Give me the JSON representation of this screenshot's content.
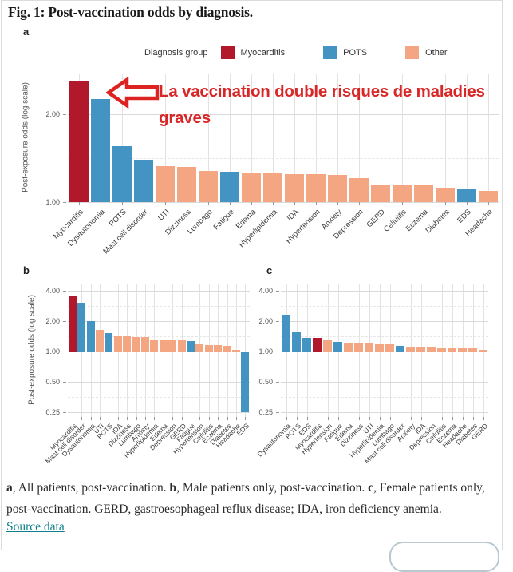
{
  "figure": {
    "title": "Fig. 1: Post-vaccination odds by diagnosis.",
    "source_link_label": "Source data",
    "caption_segments": [
      {
        "text": "a",
        "bold": true
      },
      {
        "text": ", All patients, post-vaccination. ",
        "bold": false
      },
      {
        "text": "b",
        "bold": true
      },
      {
        "text": ", Male patients only, post-vaccination. ",
        "bold": false
      },
      {
        "text": "c",
        "bold": true
      },
      {
        "text": ", Female patients only, post-vaccination. GERD, gastroesophageal reflux disease; IDA, iron deficiency anemia.",
        "bold": false
      }
    ]
  },
  "colors": {
    "myocarditis": "#b2182b",
    "pots": "#4393c3",
    "other": "#f4a582",
    "annotation_red": "#d92626",
    "link_teal": "#0f7f8b"
  },
  "legend": {
    "label": "Diagnosis group",
    "items": [
      {
        "label": "Myocarditis",
        "group": "Myocarditis",
        "color": "#b2182b"
      },
      {
        "label": "POTS",
        "group": "POTS",
        "color": "#4393c3"
      },
      {
        "label": "Other",
        "group": "Other",
        "color": "#f4a582"
      }
    ]
  },
  "annotation": {
    "line1": "La vaccination double risques de maladies",
    "line2": "graves",
    "arrow": "left-block-arrow",
    "color": "#d92626"
  },
  "group_colors": {
    "Myocarditis": "#b2182b",
    "POTS": "#4393c3",
    "Other": "#f4a582"
  },
  "chart_data": [
    {
      "id": "a",
      "panel_label": "a",
      "type": "bar",
      "scale": "log",
      "ylabel": "Post-exposure odds (log scale)",
      "yticks": [
        {
          "v": 2,
          "label": "2.00"
        },
        {
          "v": 1,
          "label": "1.00"
        }
      ],
      "minor_ticks": [
        1.414
      ],
      "ylim": [
        1.0,
        2.7
      ],
      "grid": true,
      "categories": [
        "Myocarditis",
        "Dysautonomia",
        "POTS",
        "Mast cell disorder",
        "UTI",
        "Dizziness",
        "Lumbago",
        "Fatigue",
        "Edema",
        "Hyperlipidemia",
        "IDA",
        "Hypertension",
        "Anxiety",
        "Depression",
        "GERD",
        "Cellulitis",
        "Eczema",
        "Diabetes",
        "EDS",
        "Headache"
      ],
      "values": [
        2.6,
        2.25,
        1.55,
        1.4,
        1.33,
        1.32,
        1.28,
        1.27,
        1.26,
        1.26,
        1.25,
        1.25,
        1.24,
        1.21,
        1.15,
        1.14,
        1.14,
        1.12,
        1.11,
        1.09
      ],
      "groups": [
        "Myocarditis",
        "POTS",
        "POTS",
        "POTS",
        "Other",
        "Other",
        "Other",
        "POTS",
        "Other",
        "Other",
        "Other",
        "Other",
        "Other",
        "Other",
        "Other",
        "Other",
        "Other",
        "Other",
        "POTS",
        "Other"
      ]
    },
    {
      "id": "b",
      "panel_label": "b",
      "type": "bar",
      "scale": "log",
      "ylabel": "Post-exposure odds (log scale)",
      "yticks": [
        {
          "v": 4,
          "label": "4.00"
        },
        {
          "v": 2,
          "label": "2.00"
        },
        {
          "v": 1,
          "label": "1.00"
        },
        {
          "v": 0.5,
          "label": "0.50"
        },
        {
          "v": 0.25,
          "label": "0.25"
        }
      ],
      "minor_ticks": [
        2.828,
        1.414,
        0.707,
        0.354
      ],
      "ylim": [
        0.22,
        4.6
      ],
      "grid": true,
      "categories": [
        "Myocarditis",
        "Mast cell disorder",
        "Dysautonomia",
        "UTI",
        "POTS",
        "IDA",
        "Dizziness",
        "Lumbago",
        "Anxiety",
        "Hyperlipidemia",
        "Edema",
        "Depression",
        "GERD",
        "Fatigue",
        "Hypertension",
        "Cellulitis",
        "Eczema",
        "Diabetes",
        "Headache",
        "EDS"
      ],
      "values": [
        3.55,
        3.05,
        2.0,
        1.65,
        1.52,
        1.45,
        1.43,
        1.4,
        1.39,
        1.31,
        1.3,
        1.3,
        1.28,
        1.27,
        1.21,
        1.16,
        1.15,
        1.13,
        1.03,
        0.25
      ],
      "groups": [
        "Myocarditis",
        "POTS",
        "POTS",
        "Other",
        "POTS",
        "Other",
        "Other",
        "Other",
        "Other",
        "Other",
        "Other",
        "Other",
        "Other",
        "POTS",
        "Other",
        "Other",
        "Other",
        "Other",
        "Other",
        "POTS"
      ]
    },
    {
      "id": "c",
      "panel_label": "c",
      "type": "bar",
      "scale": "log",
      "ylabel": "",
      "yticks": [
        {
          "v": 4,
          "label": "4.00"
        },
        {
          "v": 2,
          "label": "2.00"
        },
        {
          "v": 1,
          "label": "1.00"
        },
        {
          "v": 0.5,
          "label": "0.50"
        },
        {
          "v": 0.25,
          "label": "0.25"
        }
      ],
      "minor_ticks": [
        2.828,
        1.414,
        0.707,
        0.354
      ],
      "ylim": [
        0.22,
        4.6
      ],
      "grid": true,
      "categories": [
        "Dysautonomia",
        "POTS",
        "EDS",
        "Myocarditis",
        "Hypertension",
        "Fatigue",
        "Edema",
        "Dizziness",
        "UTI",
        "Hyperlipidemia",
        "Lumbago",
        "Mast cell disorder",
        "Anxiety",
        "IDA",
        "Depression",
        "Cellulitis",
        "Eczema",
        "Headache",
        "Diabetes",
        "GERD"
      ],
      "values": [
        2.3,
        1.55,
        1.37,
        1.36,
        1.28,
        1.24,
        1.23,
        1.22,
        1.22,
        1.21,
        1.18,
        1.14,
        1.12,
        1.12,
        1.12,
        1.1,
        1.1,
        1.1,
        1.07,
        1.04
      ],
      "groups": [
        "POTS",
        "POTS",
        "POTS",
        "Myocarditis",
        "Other",
        "POTS",
        "Other",
        "Other",
        "Other",
        "Other",
        "Other",
        "POTS",
        "Other",
        "Other",
        "Other",
        "Other",
        "Other",
        "Other",
        "Other",
        "Other"
      ]
    }
  ]
}
